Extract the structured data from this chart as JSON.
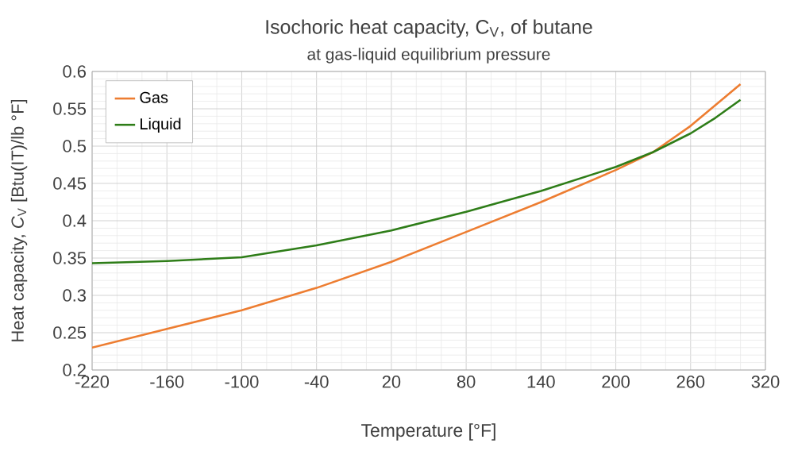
{
  "chart_data": {
    "type": "line",
    "title": "Isochoric heat capacity, C$_{V}$, of butane",
    "subtitle": "at gas-liquid equilibrium pressure",
    "xlabel": "Temperature [°F]",
    "ylabel": "Heat capacity, *C*$_{V}$  [Btu(IT)/lb °F]",
    "x": [
      -220,
      -160,
      -100,
      -40,
      20,
      80,
      140,
      200,
      230,
      260,
      280,
      300
    ],
    "series": [
      {
        "name": "Gas",
        "color": "#ed7d31",
        "values": [
          0.23,
          0.255,
          0.28,
          0.31,
          0.345,
          0.385,
          0.425,
          0.468,
          0.492,
          0.527,
          0.555,
          0.583
        ]
      },
      {
        "name": "Liquid",
        "color": "#2e7d18",
        "values": [
          0.343,
          0.346,
          0.351,
          0.367,
          0.387,
          0.412,
          0.44,
          0.472,
          0.492,
          0.517,
          0.538,
          0.562
        ]
      }
    ],
    "xlim": [
      -220,
      320
    ],
    "xticks": [
      -220,
      -160,
      -100,
      -40,
      20,
      80,
      140,
      200,
      260,
      320
    ],
    "ylim": [
      0.2,
      0.6
    ],
    "yticks": [
      0.2,
      0.25,
      0.3,
      0.35,
      0.4,
      0.45,
      0.5,
      0.55,
      0.6
    ],
    "grid": true,
    "legend": "top left",
    "marker": "none",
    "line_style": "solid"
  }
}
